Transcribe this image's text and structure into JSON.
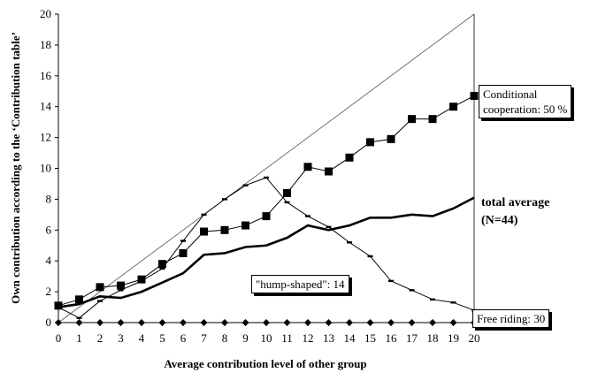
{
  "chart_data": {
    "type": "line",
    "xlabel": "Average contribution level of other group",
    "ylabel": "Own contribution according to the ‘Contribution table’",
    "xlim": [
      0,
      20
    ],
    "ylim": [
      0,
      20
    ],
    "x_ticks": [
      0,
      1,
      2,
      3,
      4,
      5,
      6,
      7,
      8,
      9,
      10,
      11,
      12,
      13,
      14,
      15,
      16,
      17,
      18,
      19,
      20
    ],
    "y_ticks": [
      0,
      2,
      4,
      6,
      8,
      10,
      12,
      14,
      16,
      18,
      20
    ],
    "grid": false,
    "x": [
      0,
      1,
      2,
      3,
      4,
      5,
      6,
      7,
      8,
      9,
      10,
      11,
      12,
      13,
      14,
      15,
      16,
      17,
      18,
      19,
      20
    ],
    "series": [
      {
        "name": "Conditional cooperation: 50 %",
        "marker": "square",
        "stroke": "thin",
        "values": [
          1.1,
          1.5,
          2.3,
          2.4,
          2.8,
          3.8,
          4.5,
          5.9,
          6.0,
          6.3,
          6.9,
          8.4,
          10.1,
          9.8,
          10.7,
          11.7,
          11.9,
          13.2,
          13.2,
          14.0,
          14.7
        ]
      },
      {
        "name": "total average (N=44)",
        "marker": "none",
        "stroke": "thick",
        "values": [
          1.0,
          1.2,
          1.7,
          1.6,
          2.0,
          2.6,
          3.2,
          4.4,
          4.5,
          4.9,
          5.0,
          5.5,
          6.3,
          6.0,
          6.3,
          6.8,
          6.8,
          7.0,
          6.9,
          7.4,
          8.1
        ]
      },
      {
        "name": "\"hump-shaped\": 14",
        "marker": "dash",
        "stroke": "thin",
        "values": [
          1.0,
          0.3,
          1.4,
          2.1,
          2.7,
          3.5,
          5.3,
          7.0,
          8.0,
          8.9,
          9.4,
          7.8,
          6.9,
          6.2,
          5.2,
          4.3,
          2.7,
          2.1,
          1.5,
          1.3,
          0.8
        ]
      },
      {
        "name": "Free riding: 30",
        "marker": "diamond",
        "stroke": "thin",
        "values": [
          0,
          0,
          0,
          0,
          0,
          0,
          0,
          0,
          0,
          0,
          0,
          0,
          0,
          0,
          0,
          0,
          0,
          0,
          0,
          0,
          0
        ]
      }
    ],
    "reference_line": {
      "from": [
        0,
        0
      ],
      "to": [
        20,
        20
      ]
    },
    "annotations": {
      "conditional_line1": "Conditional",
      "conditional_line2": "cooperation: 50 %",
      "total_line1": "total average",
      "total_line2": "(N=44)",
      "hump": "\"hump-shaped\": 14",
      "free": "Free riding: 30"
    }
  }
}
